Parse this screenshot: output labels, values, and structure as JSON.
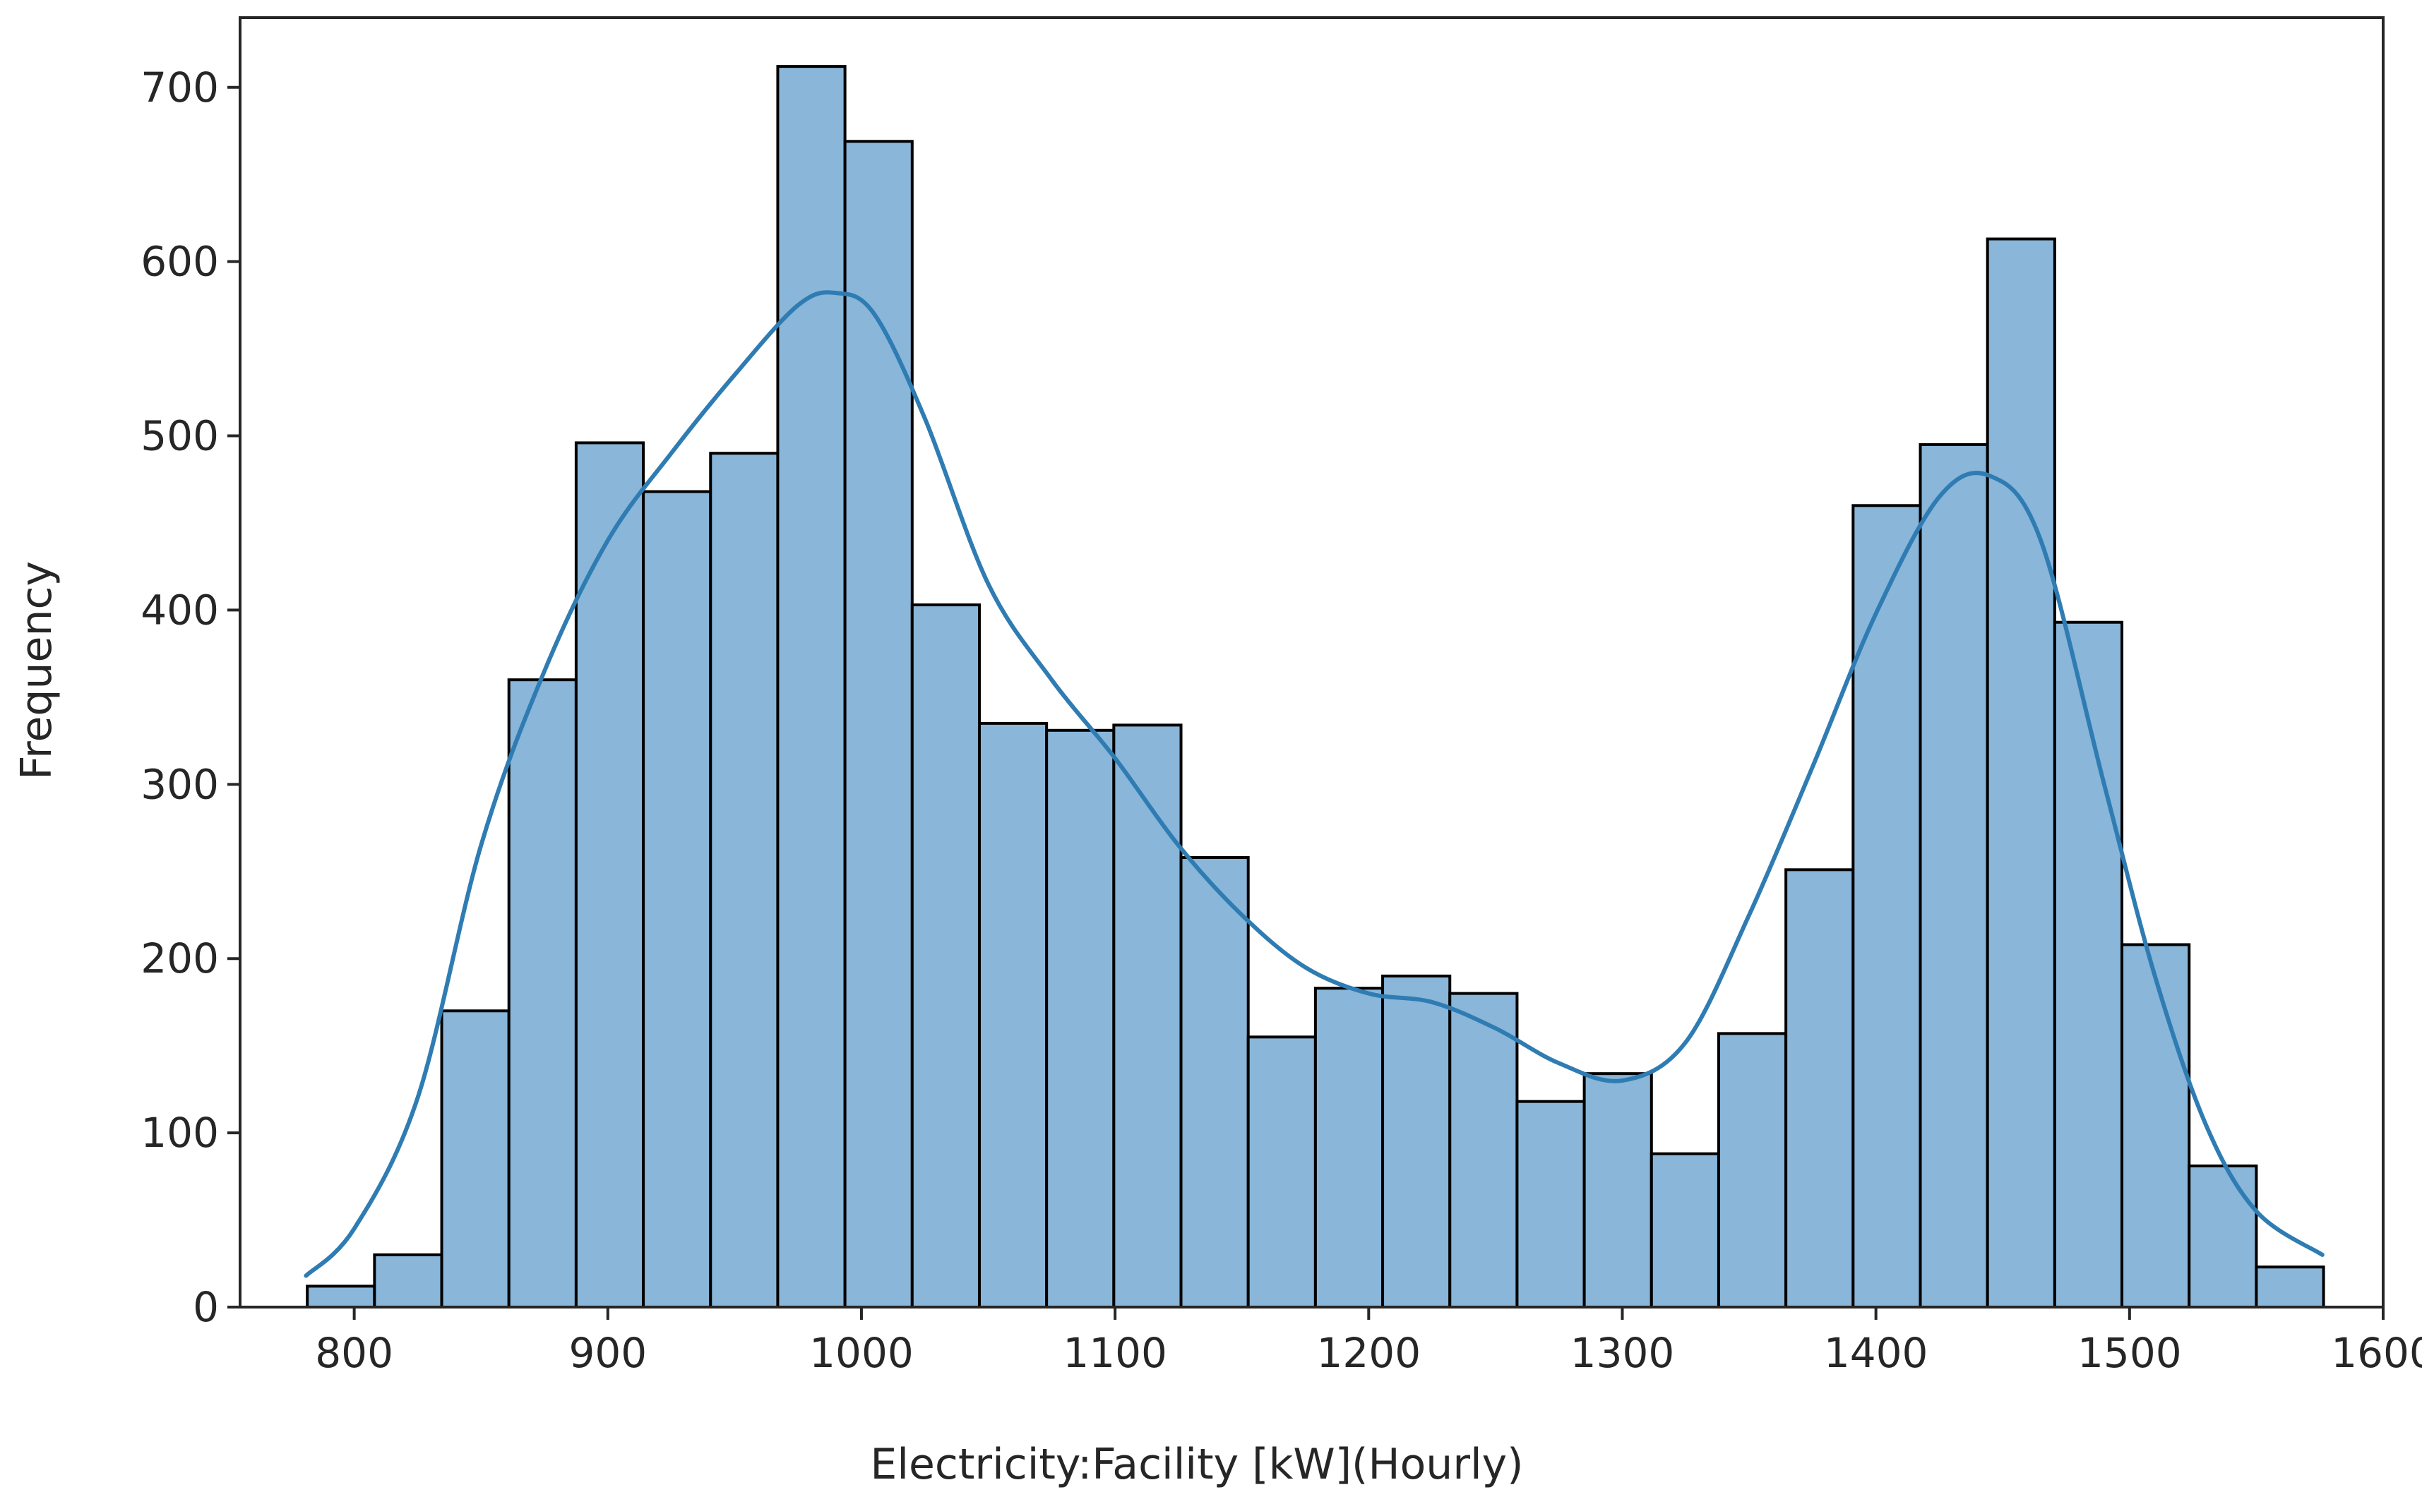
{
  "chart_data": {
    "type": "histogram",
    "xlabel": "Electricity:Facility [kW](Hourly)",
    "ylabel": "Frequency",
    "xlim": [
      755,
      1600
    ],
    "ylim": [
      0,
      740
    ],
    "xticks": [
      800,
      900,
      1000,
      1100,
      1200,
      1300,
      1400,
      1500,
      1600
    ],
    "yticks": [
      0,
      100,
      200,
      300,
      400,
      500,
      600,
      700
    ],
    "bin_edges": [
      781.5,
      808,
      834.5,
      861,
      887.5,
      914,
      940.5,
      967,
      993.5,
      1020,
      1046.5,
      1073,
      1099.5,
      1126,
      1152.5,
      1179,
      1205.5,
      1232,
      1258.5,
      1285,
      1311.5,
      1338,
      1364.5,
      1391,
      1417.5,
      1444,
      1470.5,
      1497,
      1523.5,
      1550,
      1576.5
    ],
    "counts": [
      12,
      30,
      170,
      360,
      496,
      468,
      490,
      712,
      669,
      403,
      335,
      331,
      334,
      258,
      155,
      183,
      190,
      180,
      118,
      134,
      88,
      157,
      251,
      460,
      495,
      613,
      393,
      208,
      81,
      23
    ],
    "kde": {
      "x": [
        781,
        800,
        825,
        850,
        875,
        900,
        925,
        950,
        975,
        990,
        1005,
        1025,
        1050,
        1075,
        1100,
        1125,
        1150,
        1175,
        1200,
        1225,
        1250,
        1275,
        1300,
        1325,
        1350,
        1375,
        1400,
        1425,
        1445,
        1465,
        1490,
        1510,
        1530,
        1550,
        1576
      ],
      "y": [
        18,
        45,
        120,
        265,
        365,
        440,
        490,
        535,
        575,
        582,
        570,
        510,
        415,
        360,
        315,
        265,
        225,
        195,
        180,
        175,
        160,
        140,
        130,
        152,
        225,
        310,
        398,
        465,
        477,
        440,
        300,
        190,
        105,
        55,
        30
      ]
    },
    "colors": {
      "bar_fill": "#89b6d9",
      "bar_edge": "#000000",
      "kde_line": "#2f7cb3",
      "axis": "#262626"
    },
    "grid": false,
    "legend": "none"
  }
}
